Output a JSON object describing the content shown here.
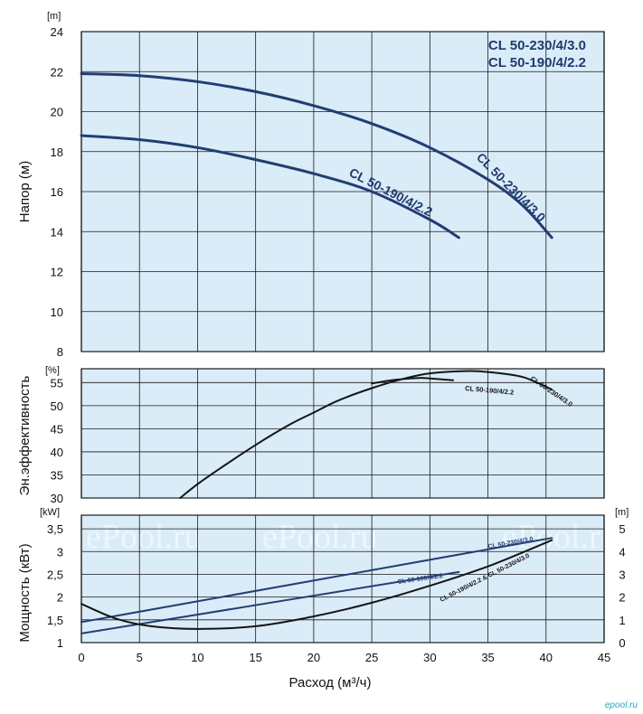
{
  "chart_data": [
    {
      "type": "line",
      "panel": "head",
      "ylabel": "Напор (м)",
      "unit": "[m]",
      "xlim": [
        0,
        45
      ],
      "ylim": [
        8,
        24
      ],
      "yticks": [
        "8",
        "10",
        "12",
        "14",
        "16",
        "18",
        "20",
        "22",
        "24"
      ],
      "grid": true,
      "legend": [
        "CL 50-230/4/3.0",
        "CL 50-190/4/2.2"
      ],
      "legend_position": "top-right",
      "series": [
        {
          "name": "CL 50-230/4/3.0",
          "x": [
            0,
            5,
            10,
            15,
            20,
            25,
            30,
            35,
            38,
            40.5
          ],
          "y": [
            21.9,
            21.8,
            21.5,
            21.0,
            20.3,
            19.4,
            18.2,
            16.6,
            15.3,
            13.7
          ]
        },
        {
          "name": "CL 50-190/4/2.2",
          "x": [
            0,
            5,
            10,
            15,
            20,
            25,
            30,
            32.5
          ],
          "y": [
            18.8,
            18.6,
            18.2,
            17.6,
            16.9,
            16.0,
            14.6,
            13.7
          ]
        }
      ],
      "annotations": [
        "CL 50-190/4/2.2",
        "CL 50-230/4/3.0"
      ]
    },
    {
      "type": "line",
      "panel": "efficiency",
      "ylabel": "Эн.эффективность",
      "unit": "[%]",
      "xlim": [
        0,
        45
      ],
      "ylim": [
        30,
        58
      ],
      "yticks": [
        "30",
        "35",
        "40",
        "45",
        "50",
        "55"
      ],
      "grid": true,
      "series": [
        {
          "name": "CL 50-230/4/3.0",
          "x": [
            8.5,
            10,
            12,
            15,
            18,
            20,
            22,
            25,
            28,
            30,
            33,
            35,
            38,
            40.5
          ],
          "y": [
            30,
            33,
            36.5,
            41.5,
            46,
            48.5,
            51,
            53.8,
            56,
            57,
            57.5,
            57.3,
            56.2,
            53.5
          ]
        },
        {
          "name": "CL 50-190/4/2.2",
          "x": [
            25,
            27,
            29,
            30,
            32
          ],
          "y": [
            54.8,
            55.6,
            56,
            55.9,
            55.5
          ]
        }
      ],
      "annotations": [
        "CL 50-190/4/2.2",
        "CL 50-230/4/3.0"
      ]
    },
    {
      "type": "line",
      "panel": "power",
      "ylabel": "Мощность (кВт)",
      "unit": "[kW]",
      "unit_right": "[m]",
      "xlabel": "Расход (м³/ч)",
      "xlim": [
        0,
        45
      ],
      "ylim": [
        1,
        3.8
      ],
      "ylim_right": [
        0,
        5.6
      ],
      "xticks": [
        "0",
        "5",
        "10",
        "15",
        "20",
        "25",
        "30",
        "35",
        "40",
        "45"
      ],
      "yticks": [
        "1",
        "1,5",
        "2",
        "2,5",
        "3",
        "3,5"
      ],
      "yticks_right": [
        "0",
        "1",
        "2",
        "3",
        "4",
        "5"
      ],
      "grid": true,
      "series": [
        {
          "name": "CL 50-230/4/3.0",
          "x": [
            0,
            40.5
          ],
          "y": [
            1.45,
            3.3
          ]
        },
        {
          "name": "CL 50-190/4/2.2",
          "x": [
            0,
            32.5
          ],
          "y": [
            1.2,
            2.55
          ]
        },
        {
          "name": "CL 50-190/4/2.2 & CL 50-230/4/3.0",
          "axis": "right",
          "x": [
            0,
            3,
            6,
            10,
            15,
            20,
            25,
            30,
            35,
            40.5
          ],
          "y": [
            1.7,
            1.05,
            0.72,
            0.6,
            0.72,
            1.15,
            1.75,
            2.5,
            3.35,
            4.5
          ]
        }
      ],
      "annotations": [
        "CL 50-230/4/3.0",
        "CL 50-190/4/2.2",
        "CL 50-190/4/2.2 & CL 50-230/4/3.0"
      ]
    }
  ],
  "watermark": "ePool.ru",
  "logo": "epool.ru",
  "colors": {
    "panel_bg": "#daecf8",
    "grid": "#1a1a1a",
    "curve_blue": "#233d73",
    "curve_black": "#151515",
    "label_blue": "#1f3a6e"
  }
}
